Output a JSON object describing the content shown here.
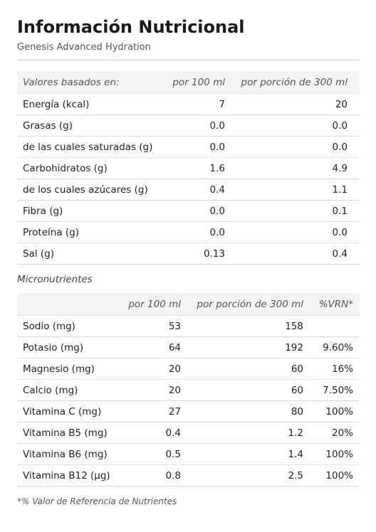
{
  "header": {
    "title": "Información Nutricional",
    "subtitle": "Genesis Advanced Hydration"
  },
  "nutrition_table": {
    "columns": [
      "Valores basados en:",
      "por 100 ml",
      "por porción de 300 ml"
    ],
    "rows": [
      [
        "Energía (kcal)",
        "7",
        "20"
      ],
      [
        "Grasas (g)",
        "0.0",
        "0.0"
      ],
      [
        "de las cuales saturadas (g)",
        "0.0",
        "0.0"
      ],
      [
        "Carbohidratos (g)",
        "1.6",
        "4.9"
      ],
      [
        "de los cuales azúcares (g)",
        "0.4",
        "1.1"
      ],
      [
        "Fibra (g)",
        "0.0",
        "0.1"
      ],
      [
        "Proteína (g)",
        "0.0",
        "0.0"
      ],
      [
        "Sal (g)",
        "0.13",
        "0.4"
      ]
    ]
  },
  "micronutrients": {
    "title": "Micronutrientes",
    "columns": [
      null,
      "por 100 ml",
      "por porción de 300 ml",
      "%VRN*"
    ],
    "rows": [
      [
        "Sodio (mg)",
        "53",
        "158",
        null
      ],
      [
        "Potasio (mg)",
        "64",
        "192",
        "9.60%"
      ],
      [
        "Magnesio (mg)",
        "20",
        "60",
        "16%"
      ],
      [
        "Calcio (mg)",
        "20",
        "60",
        "7.50%"
      ],
      [
        "Vitamina C (mg)",
        "27",
        "80",
        "100%"
      ],
      [
        "Vitamina B5 (mg)",
        "0.4",
        "1.2",
        "20%"
      ],
      [
        "Vitamina B6 (mg)",
        "0.5",
        "1.4",
        "100%"
      ],
      [
        "Vitamina B12 (µg)",
        "0.8",
        "2.5",
        "100%"
      ]
    ]
  },
  "footnote": "*% Valor de Referencia de Nutrientes"
}
